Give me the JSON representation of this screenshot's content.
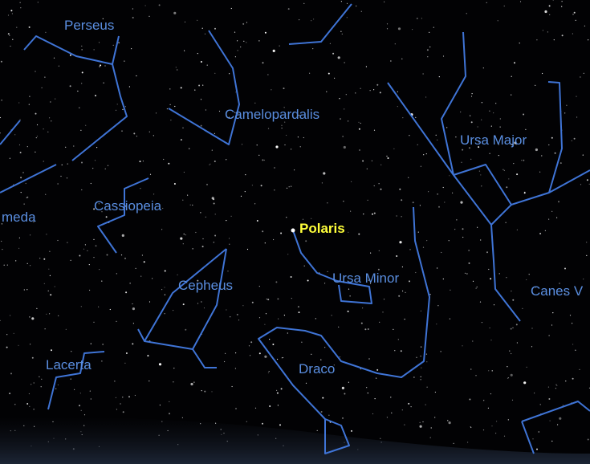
{
  "labels": [
    "Perseus",
    "Camelopardalis",
    "Ursa Major",
    "Cassiopeia",
    "meda",
    "Cepheus",
    "Ursa Minor",
    "Canes V",
    "Lacerta",
    "Draco"
  ],
  "star": {
    "label": "Polaris"
  }
}
